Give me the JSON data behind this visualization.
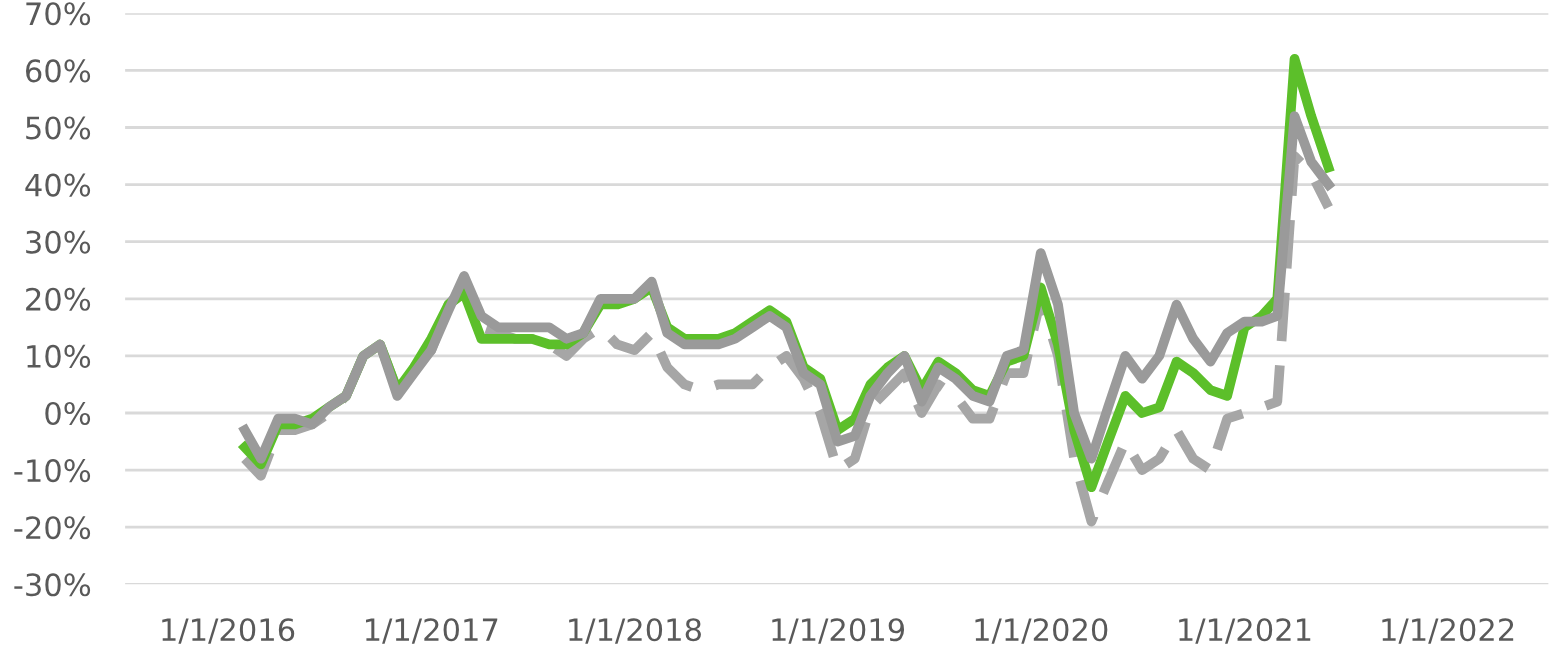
{
  "chart_data": {
    "type": "line",
    "x": [
      "2016-02",
      "2016-03",
      "2016-04",
      "2016-05",
      "2016-06",
      "2016-07",
      "2016-08",
      "2016-09",
      "2016-10",
      "2016-11",
      "2016-12",
      "2017-01",
      "2017-02",
      "2017-03",
      "2017-04",
      "2017-05",
      "2017-06",
      "2017-07",
      "2017-08",
      "2017-09",
      "2017-10",
      "2017-11",
      "2017-12",
      "2018-01",
      "2018-02",
      "2018-03",
      "2018-04",
      "2018-05",
      "2018-06",
      "2018-07",
      "2018-08",
      "2018-09",
      "2018-10",
      "2018-11",
      "2018-12",
      "2019-01",
      "2019-02",
      "2019-03",
      "2019-04",
      "2019-05",
      "2019-06",
      "2019-07",
      "2019-08",
      "2019-09",
      "2019-10",
      "2019-11",
      "2019-12",
      "2020-01",
      "2020-02",
      "2020-03",
      "2020-04",
      "2020-05",
      "2020-06",
      "2020-07",
      "2020-08",
      "2020-09",
      "2020-10",
      "2020-11",
      "2020-12",
      "2021-01",
      "2021-02",
      "2021-03",
      "2021-04",
      "2021-05",
      "2021-06"
    ],
    "series": [
      {
        "color": "#a6a6a6",
        "line_style": "dashed",
        "values": [
          -8,
          -11,
          -3,
          -3,
          -2,
          0,
          3,
          10,
          12,
          4,
          8,
          11,
          19,
          22,
          15,
          14,
          13,
          13,
          12,
          10,
          13,
          15,
          12,
          11,
          14,
          8,
          5,
          4,
          5,
          5,
          5,
          8,
          10,
          6,
          0,
          -10,
          -8,
          1,
          4,
          7,
          0,
          5,
          3,
          -1,
          -1,
          7,
          7,
          20,
          10,
          -8,
          -19,
          -12,
          -5,
          -10,
          -8,
          -3,
          -8,
          -10,
          -1,
          0,
          1,
          2,
          45,
          42,
          36
        ]
      },
      {
        "color": "#5cbf2a",
        "line_style": "solid",
        "values": [
          -6,
          -9,
          -2,
          -2,
          -1,
          1,
          3,
          10,
          12,
          4,
          8,
          13,
          19,
          21,
          13,
          13,
          13,
          13,
          12,
          12,
          14,
          19,
          19,
          20,
          22,
          15,
          13,
          13,
          13,
          14,
          16,
          18,
          16,
          8,
          6,
          -3,
          -1,
          5,
          8,
          10,
          4,
          9,
          7,
          4,
          3,
          9,
          10,
          22,
          12,
          -3,
          -13,
          -5,
          3,
          0,
          1,
          9,
          7,
          4,
          3,
          15,
          17,
          20,
          62,
          52,
          43
        ]
      },
      {
        "color": "#9a9a9a",
        "line_style": "solid",
        "values": [
          -3,
          -8,
          -1,
          -1,
          -2,
          1,
          3,
          10,
          12,
          3,
          7,
          11,
          18,
          24,
          17,
          15,
          15,
          15,
          15,
          13,
          14,
          20,
          20,
          20,
          23,
          14,
          12,
          12,
          12,
          13,
          15,
          17,
          15,
          7,
          5,
          -5,
          -4,
          3,
          7,
          10,
          2,
          8,
          6,
          3,
          2,
          10,
          11,
          28,
          19,
          0,
          -8,
          1,
          10,
          6,
          10,
          19,
          13,
          9,
          14,
          16,
          16,
          17,
          52,
          44,
          40
        ]
      }
    ],
    "xlim": [
      "2015-07-01",
      "2022-07-01"
    ],
    "xticks": [
      {
        "value": "2016-01-01",
        "label": "1/1/2016"
      },
      {
        "value": "2017-01-01",
        "label": "1/1/2017"
      },
      {
        "value": "2018-01-01",
        "label": "1/1/2018"
      },
      {
        "value": "2019-01-01",
        "label": "1/1/2019"
      },
      {
        "value": "2020-01-01",
        "label": "1/1/2020"
      },
      {
        "value": "2021-01-01",
        "label": "1/1/2021"
      },
      {
        "value": "2022-01-01",
        "label": "1/1/2022"
      }
    ],
    "ylim": [
      -30,
      70
    ],
    "yticks": [
      {
        "value": -30,
        "label": "-30%"
      },
      {
        "value": -20,
        "label": "-20%"
      },
      {
        "value": -10,
        "label": "-10%"
      },
      {
        "value": 0,
        "label": "0%"
      },
      {
        "value": 10,
        "label": "10%"
      },
      {
        "value": 20,
        "label": "20%"
      },
      {
        "value": 30,
        "label": "30%"
      },
      {
        "value": 40,
        "label": "40%"
      },
      {
        "value": 50,
        "label": "50%"
      },
      {
        "value": 60,
        "label": "60%"
      },
      {
        "value": 70,
        "label": "70%"
      }
    ],
    "grid": "y"
  }
}
